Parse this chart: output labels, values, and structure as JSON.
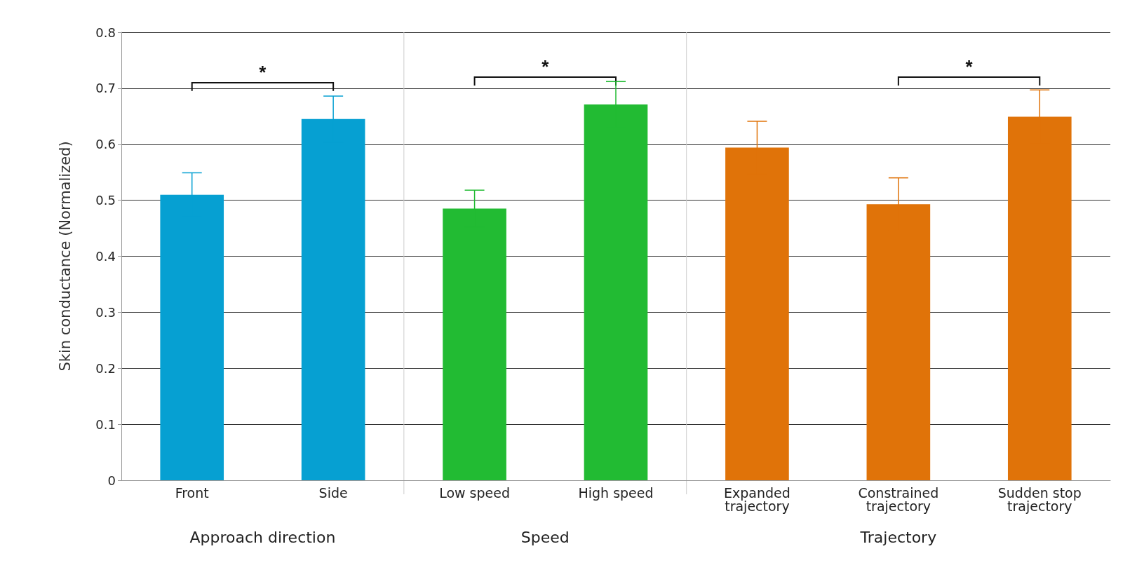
{
  "chart_data": {
    "type": "bar",
    "ylabel": "Skin conductance (Normalized)",
    "categories": [
      "Front",
      "Side",
      "Low speed",
      "High speed",
      "Expanded\ntrajectory",
      "Constrained\ntrajectory",
      "Sudden stop\ntrajectory"
    ],
    "values": [
      0.51,
      0.645,
      0.485,
      0.671,
      0.594,
      0.493,
      0.649
    ],
    "errors": [
      0.039,
      0.041,
      0.033,
      0.041,
      0.047,
      0.047,
      0.048
    ],
    "colors": [
      "#06a0d2",
      "#06a0d2",
      "#22bb33",
      "#22bb33",
      "#e07309",
      "#e07309",
      "#e07309"
    ],
    "ylim": [
      0,
      0.8
    ],
    "yticks": [
      0,
      0.1,
      0.2,
      0.3,
      0.4,
      0.5,
      0.6,
      0.7,
      0.8
    ],
    "grid": "y",
    "annotations": [
      "*",
      "*",
      "*",
      "Approach direction",
      "Speed",
      "Trajectory"
    ]
  }
}
